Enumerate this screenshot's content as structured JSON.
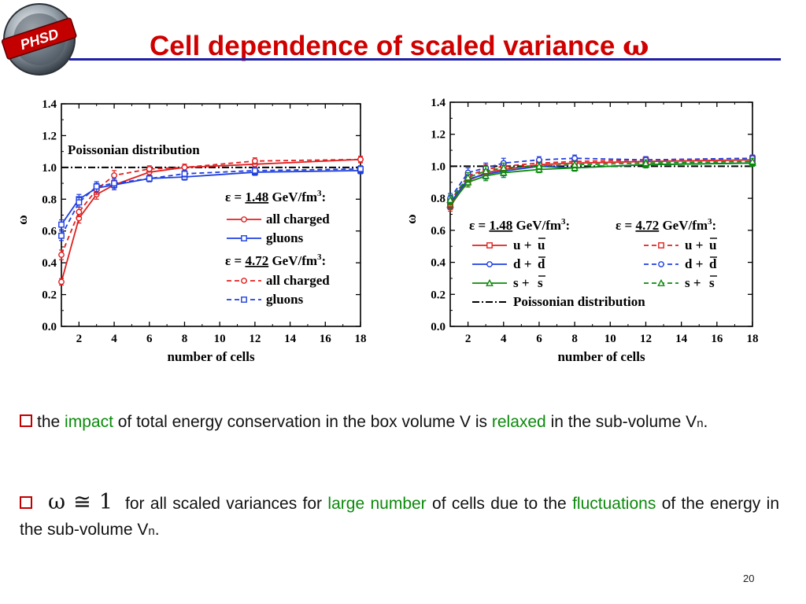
{
  "logo": {
    "text": "PHSD"
  },
  "title": {
    "text": "Cell dependence of scaled variance",
    "symbol": "ω"
  },
  "bullets": [
    {
      "w1": "the",
      "h1": "impact",
      "w2": "of total energy conservation in the box volume V is",
      "h2": "relaxed",
      "w3": "in the sub-volume V",
      "sub": "n",
      "end": "."
    },
    {
      "formula": "ω ≅ 1",
      "w1": "for all scaled variances for",
      "h1": "large number",
      "w2": "of cells due to the",
      "h2": "fluctuations",
      "w3": "of the energy in the sub-volume V",
      "sub": "n",
      "end": "."
    }
  ],
  "page_number": "20",
  "colors": {
    "title": "#d00000",
    "rule": "#1f1fa8",
    "highlight": "#0a8a0a",
    "bullet_box": "#c00000",
    "red": "#e02020",
    "blue": "#1f3fe0",
    "green": "#0a8a0a",
    "black": "#000000"
  },
  "chart_data": [
    {
      "type": "line",
      "xlabel": "number of cells",
      "ylabel": "ω",
      "xlim": [
        1,
        18
      ],
      "ylim": [
        0,
        1.4
      ],
      "xticks": [
        2,
        4,
        6,
        8,
        10,
        12,
        14,
        16,
        18
      ],
      "yticks": [
        "0.0",
        "0.2",
        "0.4",
        "0.6",
        "0.8",
        "1.0",
        "1.2",
        "1.4"
      ],
      "reference": {
        "label": "Poissonian distribution",
        "y": 1.0
      },
      "legend_groups": [
        {
          "eps_prefix": "ε =",
          "eps_value": "1.48",
          "eps_unit": "GeV/fm",
          "eps_exp": "3",
          "eps_end": ":"
        },
        {
          "eps_prefix": "ε =",
          "eps_value": "4.72",
          "eps_unit": "GeV/fm",
          "eps_exp": "3",
          "eps_end": ":"
        }
      ],
      "series": [
        {
          "name": "all charged",
          "group": 0,
          "color": "red",
          "dashed": false,
          "marker": "circle",
          "x": [
            1,
            2,
            3,
            4,
            6,
            8,
            12,
            18
          ],
          "y": [
            0.28,
            0.68,
            0.83,
            0.89,
            0.97,
            1.0,
            1.02,
            1.05
          ],
          "err": [
            0.02,
            0.03,
            0.03,
            0.03,
            0.02,
            0.02,
            0.02,
            0.02
          ]
        },
        {
          "name": "gluons",
          "group": 0,
          "color": "blue",
          "dashed": false,
          "marker": "square",
          "x": [
            1,
            2,
            3,
            4,
            6,
            8,
            12,
            18
          ],
          "y": [
            0.64,
            0.8,
            0.87,
            0.89,
            0.93,
            0.94,
            0.97,
            0.98
          ],
          "err": [
            0.03,
            0.03,
            0.03,
            0.03,
            0.02,
            0.02,
            0.02,
            0.02
          ]
        },
        {
          "name": "all charged",
          "group": 1,
          "color": "red",
          "dashed": true,
          "marker": "circle",
          "x": [
            1,
            2,
            3,
            4,
            6,
            8,
            12,
            18
          ],
          "y": [
            0.45,
            0.72,
            0.86,
            0.95,
            0.99,
            1.0,
            1.04,
            1.05
          ],
          "err": [
            0.03,
            0.03,
            0.03,
            0.03,
            0.02,
            0.02,
            0.02,
            0.02
          ]
        },
        {
          "name": "gluons",
          "group": 1,
          "color": "blue",
          "dashed": true,
          "marker": "square",
          "x": [
            1,
            2,
            3,
            4,
            6,
            8,
            12,
            18
          ],
          "y": [
            0.57,
            0.78,
            0.88,
            0.9,
            0.93,
            0.96,
            0.98,
            0.99
          ],
          "err": [
            0.03,
            0.03,
            0.03,
            0.03,
            0.02,
            0.02,
            0.02,
            0.02
          ]
        }
      ]
    },
    {
      "type": "line",
      "xlabel": "number of cells",
      "ylabel": "ω",
      "xlim": [
        1,
        18
      ],
      "ylim": [
        0,
        1.4
      ],
      "xticks": [
        2,
        4,
        6,
        8,
        10,
        12,
        14,
        16,
        18
      ],
      "yticks": [
        "0.0",
        "0.2",
        "0.4",
        "0.6",
        "0.8",
        "1.0",
        "1.2",
        "1.4"
      ],
      "reference": {
        "label": "Poissonian distribution",
        "y": 1.0
      },
      "legend_groups": [
        {
          "eps_prefix": "ε =",
          "eps_value": "1.48",
          "eps_unit": "GeV/fm",
          "eps_exp": "3",
          "eps_end": ":"
        },
        {
          "eps_prefix": "ε =",
          "eps_value": "4.72",
          "eps_unit": "GeV/fm",
          "eps_exp": "3",
          "eps_end": ":"
        }
      ],
      "series": [
        {
          "name": "u + ū",
          "q": "u",
          "group": 0,
          "color": "red",
          "dashed": false,
          "marker": "square",
          "x": [
            1,
            2,
            3,
            4,
            6,
            8,
            12,
            18
          ],
          "y": [
            0.75,
            0.91,
            0.96,
            0.98,
            1.01,
            1.02,
            1.03,
            1.04
          ],
          "err": [
            0.03,
            0.03,
            0.03,
            0.03,
            0.02,
            0.02,
            0.02,
            0.02
          ]
        },
        {
          "name": "d + d̄",
          "q": "d",
          "group": 0,
          "color": "blue",
          "dashed": false,
          "marker": "circle",
          "x": [
            1,
            2,
            3,
            4,
            6,
            8,
            12,
            18
          ],
          "y": [
            0.77,
            0.92,
            0.95,
            0.97,
            1.0,
            0.99,
            1.01,
            1.02
          ],
          "err": [
            0.03,
            0.03,
            0.03,
            0.03,
            0.02,
            0.02,
            0.02,
            0.02
          ]
        },
        {
          "name": "s + s̄",
          "q": "s",
          "group": 0,
          "color": "green",
          "dashed": false,
          "marker": "triangle",
          "x": [
            1,
            2,
            3,
            4,
            6,
            8,
            12,
            18
          ],
          "y": [
            0.76,
            0.9,
            0.94,
            0.96,
            0.98,
            0.99,
            1.01,
            1.02
          ],
          "err": [
            0.03,
            0.03,
            0.03,
            0.03,
            0.02,
            0.02,
            0.02,
            0.02
          ]
        },
        {
          "name": "u + ū",
          "q": "u",
          "group": 1,
          "color": "red",
          "dashed": true,
          "marker": "square",
          "x": [
            1,
            2,
            3,
            4,
            6,
            8,
            12,
            18
          ],
          "y": [
            0.78,
            0.94,
            0.98,
            1.0,
            1.02,
            1.03,
            1.04,
            1.05
          ],
          "err": [
            0.03,
            0.03,
            0.03,
            0.03,
            0.02,
            0.02,
            0.02,
            0.02
          ]
        },
        {
          "name": "d + d̄",
          "q": "d",
          "group": 1,
          "color": "blue",
          "dashed": true,
          "marker": "circle",
          "x": [
            1,
            2,
            3,
            4,
            6,
            8,
            12,
            18
          ],
          "y": [
            0.8,
            0.96,
            0.99,
            1.02,
            1.04,
            1.05,
            1.04,
            1.05
          ],
          "err": [
            0.03,
            0.03,
            0.03,
            0.03,
            0.02,
            0.02,
            0.02,
            0.02
          ]
        },
        {
          "name": "s + s̄",
          "q": "s",
          "group": 1,
          "color": "green",
          "dashed": true,
          "marker": "triangle",
          "x": [
            1,
            2,
            3,
            4,
            6,
            8,
            12,
            18
          ],
          "y": [
            0.79,
            0.93,
            0.97,
            0.99,
            1.0,
            1.01,
            1.02,
            1.03
          ],
          "err": [
            0.03,
            0.03,
            0.03,
            0.03,
            0.02,
            0.02,
            0.02,
            0.02
          ]
        }
      ]
    }
  ]
}
